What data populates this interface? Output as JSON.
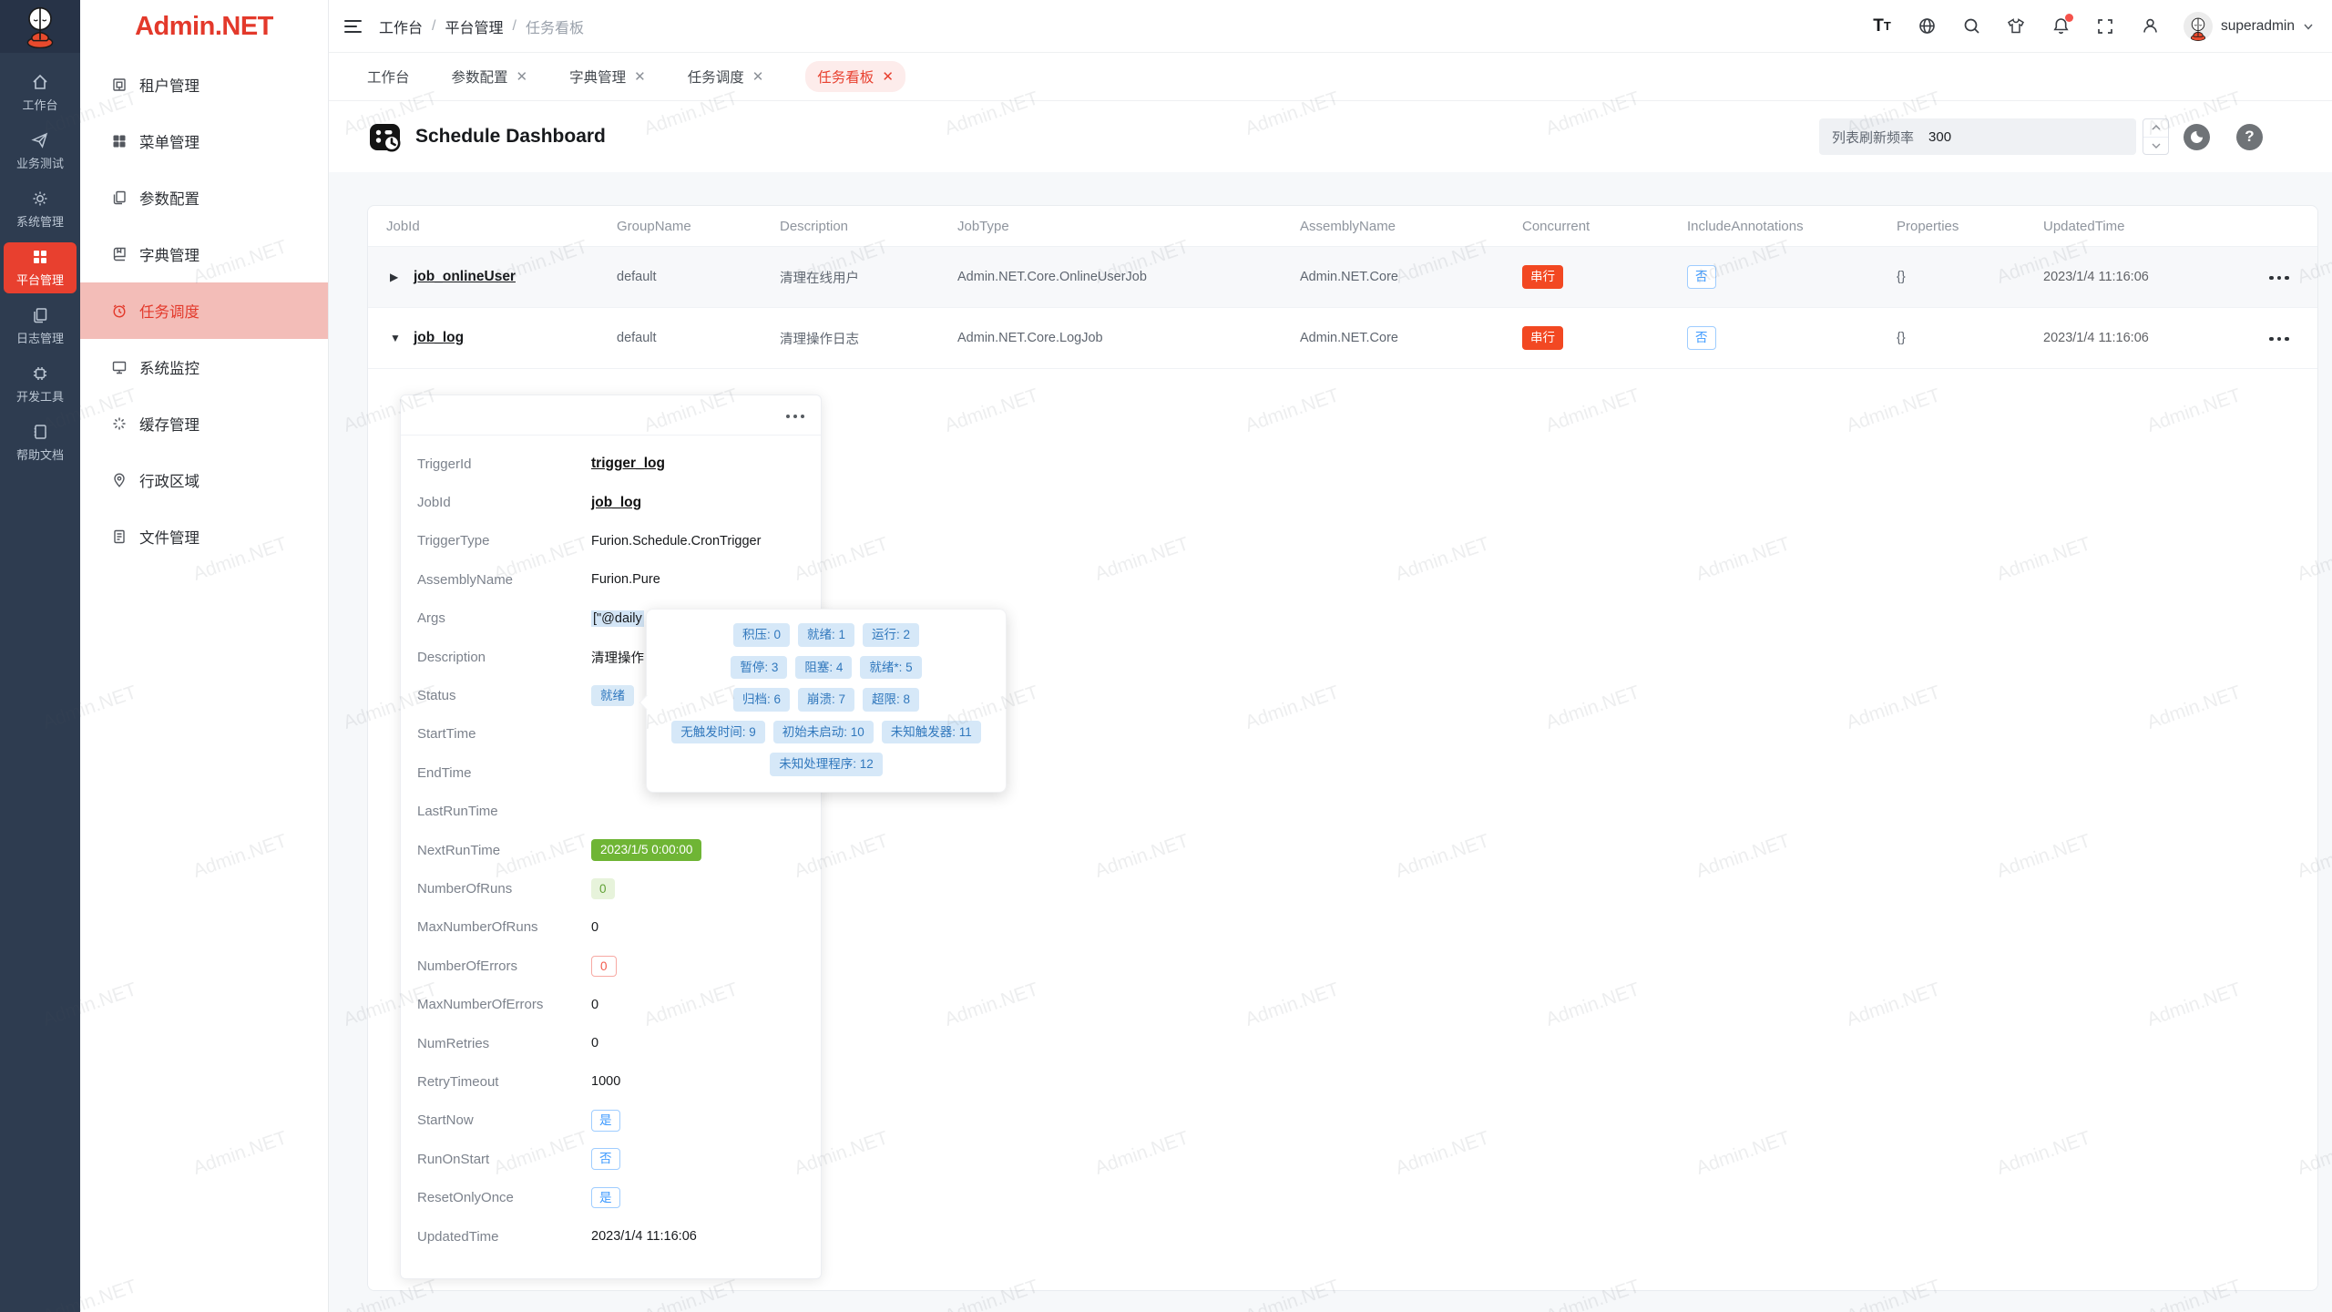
{
  "brand": {
    "logo_text": "Admin.NET"
  },
  "watermark": {
    "text": "Admin.NET"
  },
  "colors": {
    "brand_red": "#e8402f",
    "sidebar_active_bg": "#f3bdb8",
    "tab_active_bg": "#fdeceb",
    "tag_blue_bg": "#d6e8f8",
    "tag_blue_text": "#3078be",
    "tag_green_solid": "#6fb535",
    "tag_green_light_bg": "#e7f3db",
    "tag_red_solid": "#f24822",
    "tag_red_outline": "#f25a4c",
    "rail_bg": "#2e3c50"
  },
  "rail": {
    "items": [
      {
        "label": "工作台"
      },
      {
        "label": "业务测试"
      },
      {
        "label": "系统管理"
      },
      {
        "label": "平台管理"
      },
      {
        "label": "日志管理"
      },
      {
        "label": "开发工具"
      },
      {
        "label": "帮助文档"
      }
    ]
  },
  "sidebar": {
    "items": [
      {
        "label": "租户管理"
      },
      {
        "label": "菜单管理"
      },
      {
        "label": "参数配置"
      },
      {
        "label": "字典管理"
      },
      {
        "label": "任务调度"
      },
      {
        "label": "系统监控"
      },
      {
        "label": "缓存管理"
      },
      {
        "label": "行政区域"
      },
      {
        "label": "文件管理"
      }
    ]
  },
  "navbar": {
    "breadcrumb": [
      "工作台",
      "平台管理",
      "任务看板"
    ],
    "username": "superadmin"
  },
  "tabs": [
    {
      "label": "工作台"
    },
    {
      "label": "参数配置"
    },
    {
      "label": "字典管理"
    },
    {
      "label": "任务调度"
    },
    {
      "label": "任务看板"
    }
  ],
  "page": {
    "title": "Schedule Dashboard",
    "refresh_label": "列表刷新频率",
    "refresh_value": "300"
  },
  "table": {
    "columns": [
      "JobId",
      "GroupName",
      "Description",
      "JobType",
      "AssemblyName",
      "Concurrent",
      "IncludeAnnotations",
      "Properties",
      "UpdatedTime"
    ],
    "rows": [
      {
        "jobId": "job_onlineUser",
        "groupName": "default",
        "description": "清理在线用户",
        "jobType": "Admin.NET.Core.OnlineUserJob",
        "assemblyName": "Admin.NET.Core",
        "concurrent": "串行",
        "includeAnnotations": "否",
        "properties": "{}",
        "updatedTime": "2023/1/4 11:16:06"
      },
      {
        "jobId": "job_log",
        "groupName": "default",
        "description": "清理操作日志",
        "jobType": "Admin.NET.Core.LogJob",
        "assemblyName": "Admin.NET.Core",
        "concurrent": "串行",
        "includeAnnotations": "否",
        "properties": "{}",
        "updatedTime": "2023/1/4 11:16:06"
      }
    ]
  },
  "detail": {
    "rows": [
      {
        "label": "TriggerId",
        "value": "trigger_log"
      },
      {
        "label": "JobId",
        "value": "job_log"
      },
      {
        "label": "TriggerType",
        "value": "Furion.Schedule.CronTrigger"
      },
      {
        "label": "AssemblyName",
        "value": "Furion.Pure"
      },
      {
        "label": "Args",
        "value": "[\"@daily"
      },
      {
        "label": "Description",
        "value": "清理操作日志"
      },
      {
        "label": "Status",
        "value": "就绪"
      },
      {
        "label": "StartTime",
        "value": ""
      },
      {
        "label": "EndTime",
        "value": ""
      },
      {
        "label": "LastRunTime",
        "value": ""
      },
      {
        "label": "NextRunTime",
        "value": "2023/1/5 0:00:00"
      },
      {
        "label": "NumberOfRuns",
        "value": "0"
      },
      {
        "label": "MaxNumberOfRuns",
        "value": "0"
      },
      {
        "label": "NumberOfErrors",
        "value": "0"
      },
      {
        "label": "MaxNumberOfErrors",
        "value": "0"
      },
      {
        "label": "NumRetries",
        "value": "0"
      },
      {
        "label": "RetryTimeout",
        "value": "1000"
      },
      {
        "label": "StartNow",
        "value": "是"
      },
      {
        "label": "RunOnStart",
        "value": "否"
      },
      {
        "label": "ResetOnlyOnce",
        "value": "是"
      },
      {
        "label": "UpdatedTime",
        "value": "2023/1/4 11:16:06"
      }
    ]
  },
  "status_popover": {
    "rows": [
      [
        "积压: 0",
        "就绪: 1",
        "运行: 2"
      ],
      [
        "暂停: 3",
        "阻塞: 4",
        "就绪*: 5"
      ],
      [
        "归档: 6",
        "崩溃: 7",
        "超限: 8"
      ],
      [
        "无触发时间: 9",
        "初始未启动: 10",
        "未知触发器: 11"
      ],
      [
        "未知处理程序: 12"
      ]
    ]
  }
}
